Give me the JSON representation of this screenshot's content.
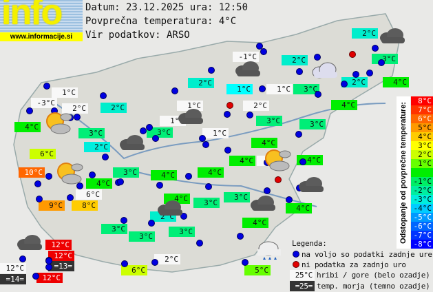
{
  "logo": {
    "text": "info",
    "url": "www.informacije.si"
  },
  "header": {
    "date_line": "Datum: 23.12.2025 ura: 12:50",
    "avg_line": "Povprečna temperatura: 4°C",
    "source_line": "Vir podatkov: ARSO"
  },
  "scale": {
    "title": "Odstopanje od povprečne temperature:",
    "items": [
      {
        "label": "8°C",
        "color": "#ff0000",
        "fg": "#fff"
      },
      {
        "label": "7°C",
        "color": "#ff3300",
        "fg": "#fff"
      },
      {
        "label": "6°C",
        "color": "#ff6600",
        "fg": "#fff"
      },
      {
        "label": "5°C",
        "color": "#ff9900",
        "fg": "#000"
      },
      {
        "label": "4°C",
        "color": "#ffcc00",
        "fg": "#000"
      },
      {
        "label": "3°C",
        "color": "#ffff00",
        "fg": "#000"
      },
      {
        "label": "2°C",
        "color": "#ccff00",
        "fg": "#000"
      },
      {
        "label": "1°C",
        "color": "#66ff00",
        "fg": "#000"
      },
      {
        "label": "",
        "color": "#00ee00",
        "fg": "#000"
      },
      {
        "label": "-1°C",
        "color": "#00ee66",
        "fg": "#000"
      },
      {
        "label": "-2°C",
        "color": "#00eea0",
        "fg": "#000"
      },
      {
        "label": "-3°C",
        "color": "#00eedd",
        "fg": "#000"
      },
      {
        "label": "-4°C",
        "color": "#00ccff",
        "fg": "#000"
      },
      {
        "label": "-5°C",
        "color": "#0099ff",
        "fg": "#fff"
      },
      {
        "label": "-6°C",
        "color": "#0066ff",
        "fg": "#fff"
      },
      {
        "label": "-7°C",
        "color": "#0033ff",
        "fg": "#fff"
      },
      {
        "label": "-8°C",
        "color": "#0000ff",
        "fg": "#fff"
      }
    ]
  },
  "legend": {
    "title": "Legenda:",
    "blue_dot": "na voljo so podatki zadnje ure",
    "red_dot": "ni podatka za zadnjo uro",
    "mountain_sample": "25°C",
    "mountain_text": "hribi / gore (belo ozadje)",
    "sea_sample": "=25=",
    "sea_text": "temp. morja (temno ozadje)"
  },
  "stations": [
    {
      "t": "1°C",
      "bg": "#f8f8f8"
    },
    {
      "t": "-3°C",
      "bg": "#f8f8f8"
    },
    {
      "t": "2°C",
      "bg": "#f8f8f8"
    },
    {
      "t": "4°C",
      "bg": "#00ee00"
    },
    {
      "t": "2°C",
      "bg": "#00eecc"
    },
    {
      "t": "3°C",
      "bg": "#00ee77"
    },
    {
      "t": "2°C",
      "bg": "#00eedd"
    },
    {
      "t": "6°C",
      "bg": "#ccff00"
    },
    {
      "t": "10°C",
      "bg": "#ff6600",
      "fg": "#fff"
    },
    {
      "t": "3°C",
      "bg": "#00ee77"
    },
    {
      "t": "4°C",
      "bg": "#00ee00"
    },
    {
      "t": "6°C",
      "bg": "#f8f8f8"
    },
    {
      "t": "9°C",
      "bg": "#ff9900"
    },
    {
      "t": "8°C",
      "bg": "#ffcc00"
    },
    {
      "t": "-1°C",
      "bg": "#f8f8f8"
    },
    {
      "t": "2°C",
      "bg": "#00eecc"
    },
    {
      "t": "1°C",
      "bg": "#00ffff"
    },
    {
      "t": "1°C",
      "bg": "#f8f8f8"
    },
    {
      "t": "1°C",
      "bg": "#f8f8f8"
    },
    {
      "t": "2°C",
      "bg": "#f8f8f8"
    },
    {
      "t": "3°C",
      "bg": "#00ee77"
    },
    {
      "t": "1°C",
      "bg": "#f8f8f8"
    },
    {
      "t": "3°C",
      "bg": "#00ee77"
    },
    {
      "t": "1°C",
      "bg": "#f8f8f8"
    },
    {
      "t": "4°C",
      "bg": "#00ee00"
    },
    {
      "t": "4°C",
      "bg": "#00ee00"
    },
    {
      "t": "-1°C",
      "bg": "#f8f8f8"
    },
    {
      "t": "4°C",
      "bg": "#00ee00"
    },
    {
      "t": "4°C",
      "bg": "#00ee00"
    },
    {
      "t": "2°C",
      "bg": "#00eecc"
    },
    {
      "t": "2°C",
      "bg": "#00eecc"
    },
    {
      "t": "3°C",
      "bg": "#00ee77"
    },
    {
      "t": "3°C",
      "bg": "#00ee77"
    },
    {
      "t": "2°C",
      "bg": "#00eecc"
    },
    {
      "t": "4°C",
      "bg": "#00ee00"
    },
    {
      "t": "4°C",
      "bg": "#00ee00"
    },
    {
      "t": "3°C",
      "bg": "#00ee77"
    },
    {
      "t": "4°C",
      "bg": "#00ee00"
    },
    {
      "t": "4°C",
      "bg": "#00ee00"
    },
    {
      "t": "3°C",
      "bg": "#00ee77"
    },
    {
      "t": "3°C",
      "bg": "#00ee77"
    },
    {
      "t": "2°C",
      "bg": "#00eecc"
    },
    {
      "t": "4°C",
      "bg": "#00ee00"
    },
    {
      "t": "4°C",
      "bg": "#00ee00"
    },
    {
      "t": "3°C",
      "bg": "#00ee77"
    },
    {
      "t": "3°C",
      "bg": "#00ee77"
    },
    {
      "t": "3°C",
      "bg": "#00ee77"
    },
    {
      "t": "2°C",
      "bg": "#f8f8f8"
    },
    {
      "t": "6°C",
      "bg": "#ccff00"
    },
    {
      "t": "5°C",
      "bg": "#66ff00"
    },
    {
      "t": "12°C",
      "bg": "#ee0000",
      "fg": "#fff"
    },
    {
      "t": "12°C",
      "bg": "#ee0000",
      "fg": "#fff"
    },
    {
      "t": "=13=",
      "bg": "#333",
      "fg": "#fff"
    },
    {
      "t": "12°C",
      "bg": "#f8f8f8"
    },
    {
      "t": "=14=",
      "bg": "#333",
      "fg": "#fff"
    },
    {
      "t": "12°C",
      "bg": "#ee0000",
      "fg": "#fff"
    }
  ],
  "icons": [
    "cloud",
    "cloud",
    "light-cloud",
    "partly-sunny",
    "partly-sunny",
    "cloud",
    "cloud",
    "partly-sunny",
    "cloud",
    "cloud",
    "cloud",
    "cloud",
    "rain"
  ]
}
